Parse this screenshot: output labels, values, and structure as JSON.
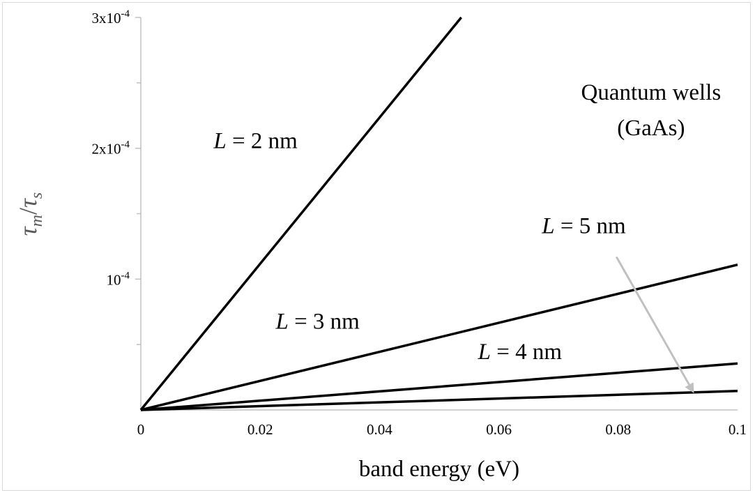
{
  "chart_data": {
    "type": "line",
    "title": "",
    "xlabel": "band energy (eV)",
    "ylabel_base": "τ",
    "ylabel_sub1": "m",
    "ylabel_sub2": "s",
    "xlim": [
      0,
      0.1
    ],
    "ylim": [
      0,
      0.0003
    ],
    "x_ticks": [
      0,
      0.02,
      0.04,
      0.06,
      0.08,
      0.1
    ],
    "x_tick_labels": [
      "0",
      "0.02",
      "0.04",
      "0.06",
      "0.08",
      "0.1"
    ],
    "y_major_ticks": [
      0.0001,
      0.0002,
      0.0003
    ],
    "y_tick_labels": [
      {
        "value": 0.0003,
        "mant": "3x10",
        "exp": "-4"
      },
      {
        "value": 0.0002,
        "mant": "2x10",
        "exp": "-4"
      },
      {
        "value": 0.0001,
        "mant": "10",
        "exp": "-4"
      }
    ],
    "y_minor_ticks": [
      5e-05,
      0.00015,
      0.00025
    ],
    "grid": false,
    "series": [
      {
        "x": [
          0,
          0.0537
        ],
        "y": [
          0,
          0.0003
        ]
      },
      {
        "x": [
          0,
          0.1
        ],
        "y": [
          0,
          0.000111
        ]
      },
      {
        "x": [
          0,
          0.1
        ],
        "y": [
          0,
          3.55e-05
        ]
      },
      {
        "x": [
          0,
          0.1
        ],
        "y": [
          0,
          1.45e-05
        ]
      }
    ],
    "annotations": [
      {
        "var": "L",
        "text": " = 2 nm",
        "x": 0.0122,
        "y": 0.0002
      },
      {
        "var": "L",
        "text": " = 3 nm",
        "x": 0.0226,
        "y": 6.2e-05
      },
      {
        "var": "L",
        "text": " = 4 nm",
        "x": 0.0565,
        "y": 3.9e-05
      },
      {
        "var": "L",
        "text": " = 5 nm",
        "x": 0.0672,
        "y": 0.000135
      }
    ],
    "text_labels": [
      {
        "text": "Quantum wells",
        "x": 0.0855,
        "y": 0.000237
      },
      {
        "text": "(GaAs)",
        "x": 0.0855,
        "y": 0.00021
      }
    ],
    "arrow": {
      "from": [
        0.0797,
        0.000117
      ],
      "to": [
        0.0927,
        1.28e-05
      ],
      "color": "#c0c0c0"
    },
    "colors": {
      "line": "#000000",
      "axis": "#c0c0c0",
      "ylabel": "#595959",
      "arrow": "#c0c0c0"
    }
  }
}
